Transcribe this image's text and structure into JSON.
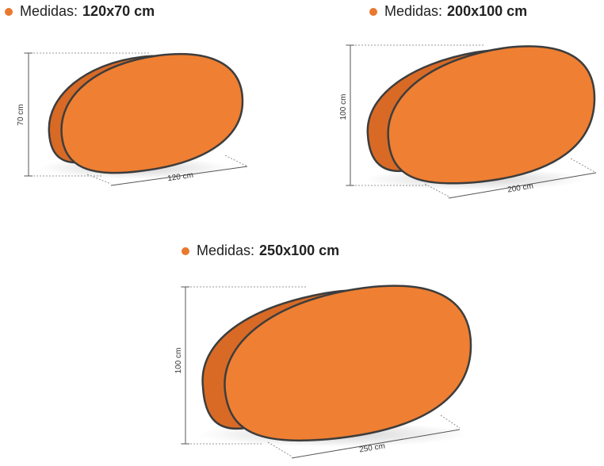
{
  "colors": {
    "banner_front": "#ef7f32",
    "banner_back": "#d86a25",
    "outline": "#3d3d3d",
    "bullet": "#e8792f",
    "dimension_line": "#555555"
  },
  "items": [
    {
      "caption_prefix": "Medidas:",
      "caption_size": "120x70 cm",
      "height_label": "70 cm",
      "width_label": "120 cm"
    },
    {
      "caption_prefix": "Medidas:",
      "caption_size": "200x100 cm",
      "height_label": "100 cm",
      "width_label": "200 cm"
    },
    {
      "caption_prefix": "Medidas:",
      "caption_size": "250x100 cm",
      "height_label": "100 cm",
      "width_label": "250 cm"
    }
  ]
}
